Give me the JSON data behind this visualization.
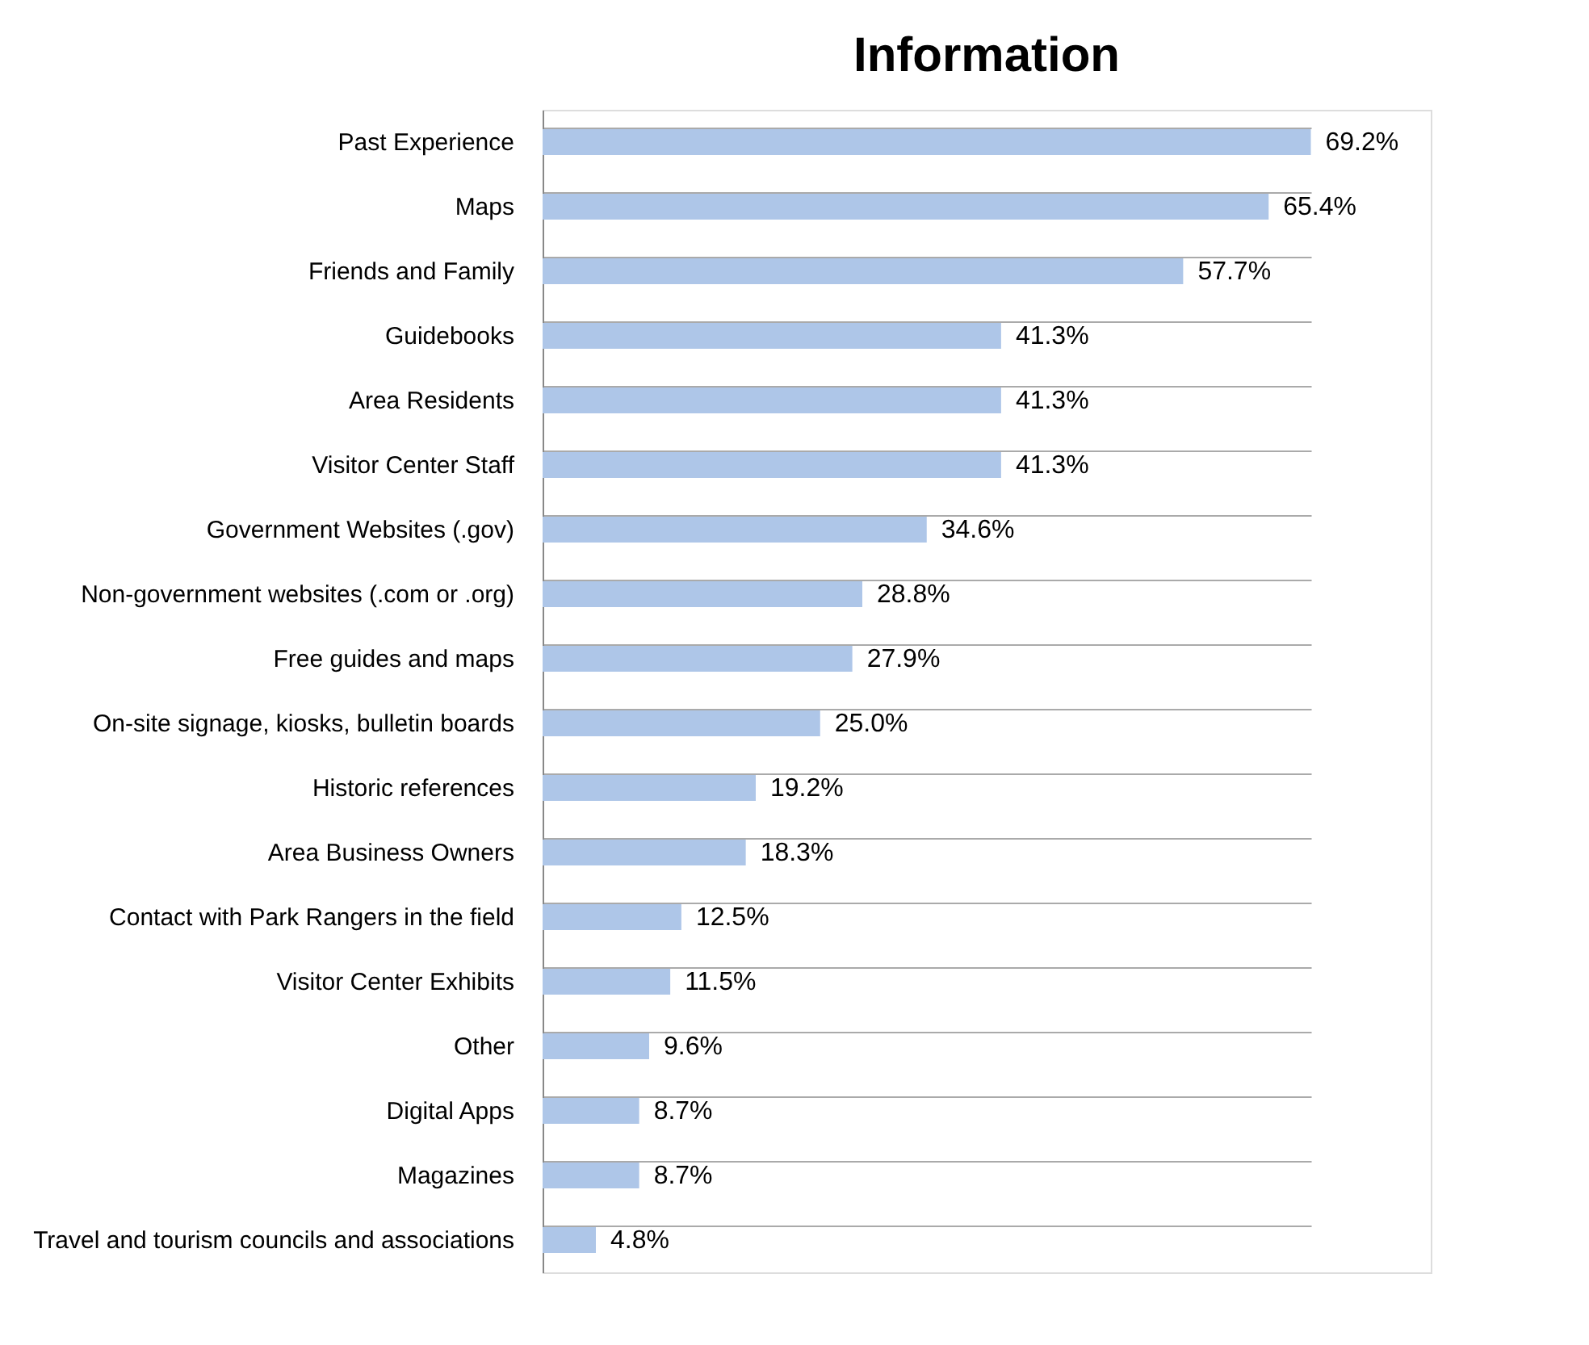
{
  "chart_data": {
    "type": "bar",
    "orientation": "horizontal",
    "title": "Information",
    "categories": [
      "Past Experience",
      "Maps",
      "Friends and Family",
      "Guidebooks",
      "Area Residents",
      "Visitor Center Staff",
      "Government Websites (.gov)",
      "Non-government websites (.com or .org)",
      "Free guides and maps",
      "On-site signage, kiosks, bulletin boards",
      "Historic references",
      "Area Business Owners",
      "Contact with Park Rangers in the field",
      "Visitor Center Exhibits",
      "Other",
      "Digital Apps",
      "Magazines",
      "Travel and tourism councils and associations"
    ],
    "values": [
      69.2,
      65.4,
      57.7,
      41.3,
      41.3,
      41.3,
      34.6,
      28.8,
      27.9,
      25.0,
      19.2,
      18.3,
      12.5,
      11.5,
      9.6,
      8.7,
      8.7,
      4.8
    ],
    "value_labels": [
      "69.2%",
      "65.4%",
      "57.7%",
      "41.3%",
      "41.3%",
      "41.3%",
      "34.6%",
      "28.8%",
      "27.9%",
      "25.0%",
      "19.2%",
      "18.3%",
      "12.5%",
      "11.5%",
      "9.6%",
      "8.7%",
      "8.7%",
      "4.8%"
    ],
    "color": "#aec6e8",
    "grid": "y"
  }
}
